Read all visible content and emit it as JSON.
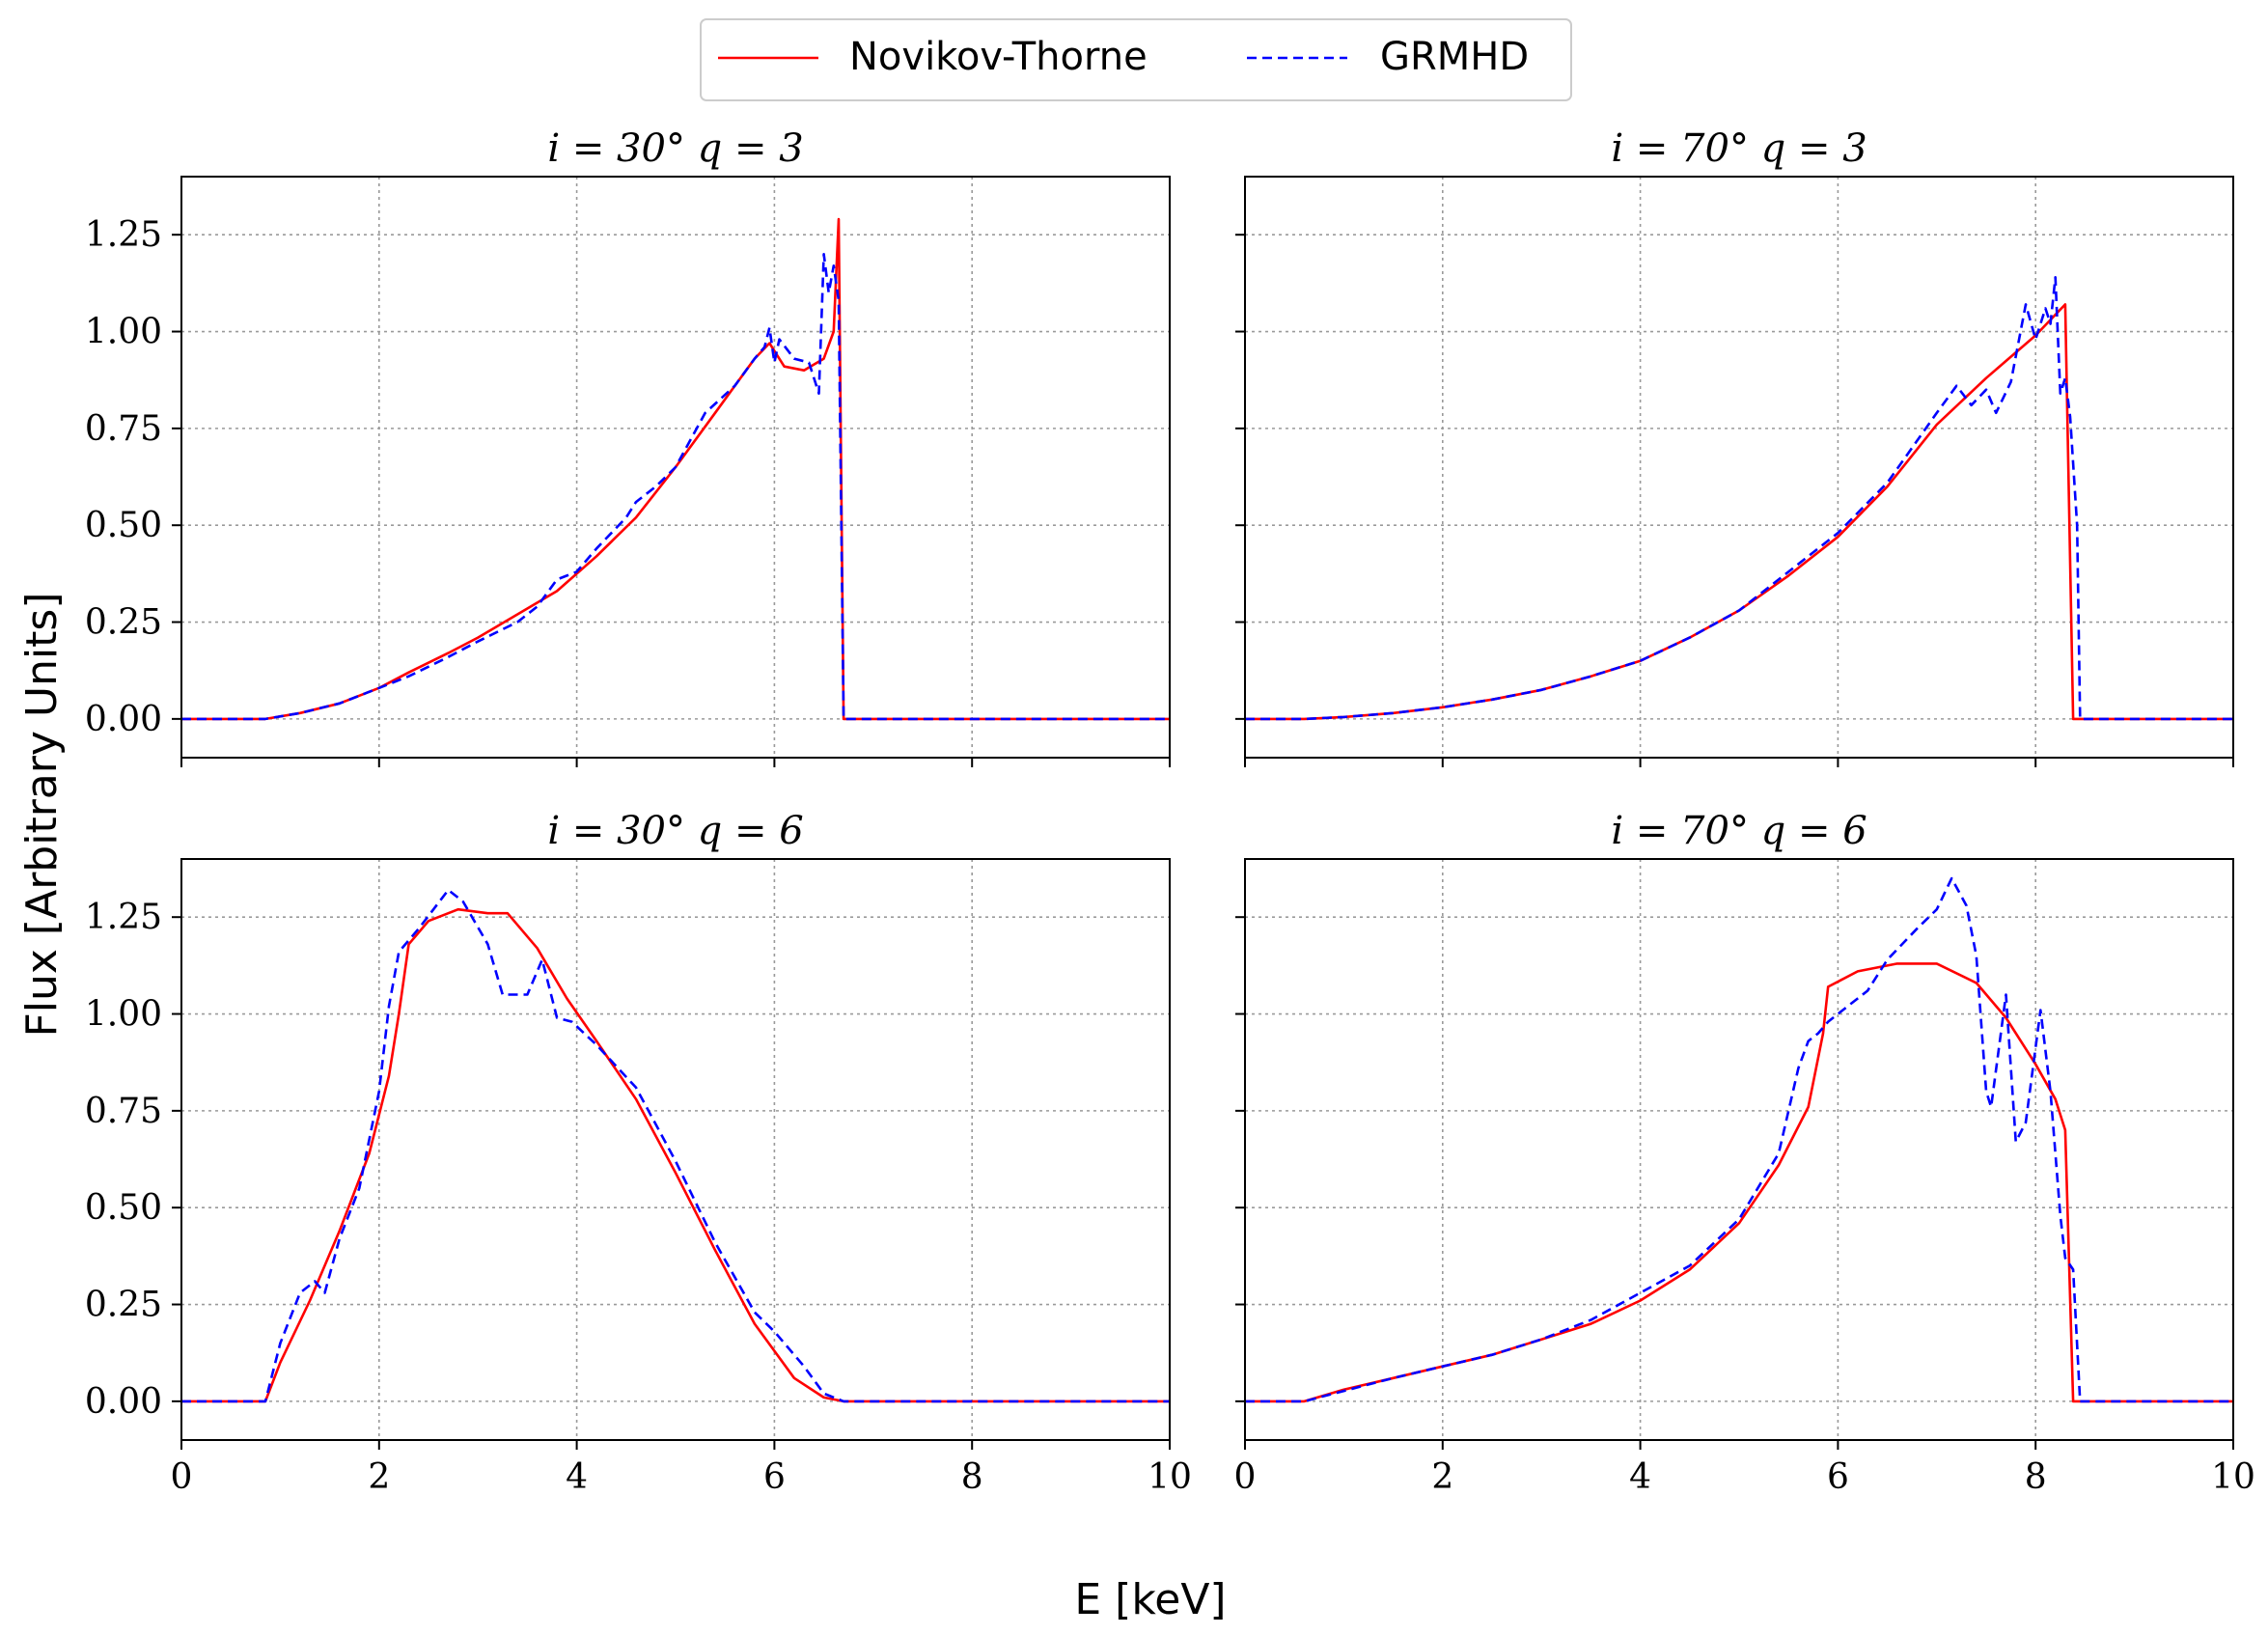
{
  "legend": [
    {
      "label": "Novikov-Thorne",
      "color": "#ff0000",
      "dash": "solid"
    },
    {
      "label": "GRMHD",
      "color": "#0000ff",
      "dash": "dashed"
    }
  ],
  "xlabel": "E [keV]",
  "ylabel": "Flux [Arbitrary Units]",
  "chart_data": [
    {
      "type": "line",
      "title": "i = 30° q = 3",
      "xlim": [
        0,
        10
      ],
      "ylim": [
        -0.1,
        1.4
      ],
      "xticks": [
        0,
        2,
        4,
        6,
        8,
        10
      ],
      "yticks": [
        "0.00",
        "0.25",
        "0.50",
        "0.75",
        "1.00",
        "1.25"
      ],
      "grid": true,
      "series": [
        {
          "name": "Novikov-Thorne",
          "x": [
            0,
            0.85,
            1.2,
            1.6,
            2.0,
            2.3,
            2.7,
            3.0,
            3.4,
            3.8,
            4.2,
            4.6,
            5.0,
            5.4,
            5.8,
            5.95,
            6.1,
            6.3,
            6.5,
            6.6,
            6.65,
            6.7,
            10
          ],
          "y": [
            0,
            0,
            0.015,
            0.04,
            0.08,
            0.12,
            0.17,
            0.21,
            0.27,
            0.33,
            0.42,
            0.52,
            0.65,
            0.79,
            0.93,
            0.97,
            0.91,
            0.9,
            0.93,
            1.0,
            1.29,
            0.0,
            0
          ]
        },
        {
          "name": "GRMHD",
          "x": [
            0,
            0.85,
            1.2,
            1.6,
            2.0,
            2.3,
            2.7,
            3.0,
            3.4,
            3.6,
            3.8,
            4.0,
            4.2,
            4.5,
            4.6,
            4.8,
            5.0,
            5.3,
            5.6,
            5.8,
            5.9,
            5.95,
            6.0,
            6.05,
            6.2,
            6.35,
            6.45,
            6.5,
            6.55,
            6.6,
            6.65,
            6.7,
            10
          ],
          "y": [
            0,
            0,
            0.015,
            0.04,
            0.08,
            0.11,
            0.16,
            0.2,
            0.25,
            0.29,
            0.36,
            0.38,
            0.44,
            0.52,
            0.56,
            0.6,
            0.65,
            0.79,
            0.86,
            0.93,
            0.96,
            1.01,
            0.92,
            0.98,
            0.93,
            0.92,
            0.84,
            1.2,
            1.1,
            1.17,
            1.08,
            0.0,
            0
          ]
        }
      ]
    },
    {
      "type": "line",
      "title": "i = 70° q = 3",
      "xlim": [
        0,
        10
      ],
      "ylim": [
        -0.1,
        1.4
      ],
      "xticks": [
        0,
        2,
        4,
        6,
        8,
        10
      ],
      "yticks": [
        "0.00",
        "0.25",
        "0.50",
        "0.75",
        "1.00",
        "1.25"
      ],
      "grid": true,
      "series": [
        {
          "name": "Novikov-Thorne",
          "x": [
            0,
            0.6,
            1.0,
            1.5,
            2.0,
            2.5,
            3.0,
            3.5,
            4.0,
            4.5,
            5.0,
            5.5,
            6.0,
            6.5,
            7.0,
            7.5,
            8.0,
            8.3,
            8.38,
            8.4,
            10
          ],
          "y": [
            0,
            0,
            0.005,
            0.015,
            0.03,
            0.05,
            0.075,
            0.11,
            0.15,
            0.21,
            0.28,
            0.37,
            0.47,
            0.6,
            0.76,
            0.88,
            0.99,
            1.07,
            0.0,
            0,
            0
          ]
        },
        {
          "name": "GRMHD",
          "x": [
            0,
            0.6,
            1.0,
            1.5,
            2.0,
            2.5,
            3.0,
            3.5,
            4.0,
            4.5,
            5.0,
            5.5,
            6.0,
            6.5,
            7.0,
            7.2,
            7.35,
            7.5,
            7.6,
            7.75,
            7.9,
            8.0,
            8.1,
            8.15,
            8.2,
            8.25,
            8.3,
            8.35,
            8.42,
            8.45,
            10
          ],
          "y": [
            0,
            0,
            0.005,
            0.015,
            0.03,
            0.05,
            0.075,
            0.11,
            0.15,
            0.21,
            0.28,
            0.38,
            0.48,
            0.61,
            0.79,
            0.86,
            0.81,
            0.85,
            0.79,
            0.87,
            1.07,
            0.98,
            1.06,
            1.02,
            1.14,
            0.84,
            0.88,
            0.78,
            0.5,
            0.0,
            0
          ]
        }
      ]
    },
    {
      "type": "line",
      "title": "i = 30° q = 6",
      "xlim": [
        0,
        10
      ],
      "ylim": [
        -0.1,
        1.4
      ],
      "xticks": [
        0,
        2,
        4,
        6,
        8,
        10
      ],
      "yticks": [
        "0.00",
        "0.25",
        "0.50",
        "0.75",
        "1.00",
        "1.25"
      ],
      "grid": true,
      "series": [
        {
          "name": "Novikov-Thorne",
          "x": [
            0,
            0.85,
            1.0,
            1.3,
            1.6,
            1.9,
            2.1,
            2.2,
            2.3,
            2.5,
            2.8,
            3.1,
            3.3,
            3.6,
            3.9,
            4.2,
            4.6,
            5.0,
            5.4,
            5.8,
            6.2,
            6.5,
            6.7,
            10
          ],
          "y": [
            0,
            0,
            0.1,
            0.26,
            0.44,
            0.64,
            0.84,
            1.0,
            1.18,
            1.24,
            1.27,
            1.26,
            1.26,
            1.17,
            1.04,
            0.93,
            0.78,
            0.59,
            0.39,
            0.2,
            0.06,
            0.01,
            0,
            0
          ]
        },
        {
          "name": "GRMHD",
          "x": [
            0,
            0.85,
            1.0,
            1.2,
            1.35,
            1.45,
            1.6,
            1.8,
            2.0,
            2.1,
            2.2,
            2.4,
            2.7,
            2.85,
            3.1,
            3.25,
            3.5,
            3.65,
            3.8,
            3.95,
            4.2,
            4.6,
            5.0,
            5.4,
            5.8,
            6.0,
            6.3,
            6.5,
            6.7,
            10
          ],
          "y": [
            0,
            0,
            0.15,
            0.28,
            0.31,
            0.28,
            0.42,
            0.55,
            0.8,
            1.02,
            1.16,
            1.22,
            1.32,
            1.29,
            1.18,
            1.05,
            1.05,
            1.14,
            0.99,
            0.98,
            0.92,
            0.81,
            0.62,
            0.41,
            0.23,
            0.18,
            0.09,
            0.02,
            0,
            0
          ]
        }
      ]
    },
    {
      "type": "line",
      "title": "i = 70° q = 6",
      "xlim": [
        0,
        10
      ],
      "ylim": [
        -0.1,
        1.4
      ],
      "xticks": [
        0,
        2,
        4,
        6,
        8,
        10
      ],
      "yticks": [
        "0.00",
        "0.25",
        "0.50",
        "0.75",
        "1.00",
        "1.25"
      ],
      "grid": true,
      "series": [
        {
          "name": "Novikov-Thorne",
          "x": [
            0,
            0.6,
            1.0,
            1.5,
            2.0,
            2.5,
            3.0,
            3.5,
            4.0,
            4.5,
            5.0,
            5.4,
            5.7,
            5.85,
            5.9,
            6.2,
            6.6,
            7.0,
            7.4,
            7.7,
            8.0,
            8.2,
            8.3,
            8.38,
            8.42,
            10
          ],
          "y": [
            0,
            0,
            0.03,
            0.06,
            0.09,
            0.12,
            0.16,
            0.2,
            0.26,
            0.34,
            0.46,
            0.61,
            0.76,
            0.95,
            1.07,
            1.11,
            1.13,
            1.13,
            1.08,
            0.99,
            0.87,
            0.78,
            0.7,
            0.0,
            0,
            0
          ]
        },
        {
          "name": "GRMHD",
          "x": [
            0,
            0.6,
            0.9,
            1.5,
            2.0,
            2.5,
            3.0,
            3.5,
            4.0,
            4.5,
            5.0,
            5.4,
            5.6,
            5.7,
            5.8,
            5.9,
            6.1,
            6.3,
            6.5,
            6.8,
            7.0,
            7.15,
            7.3,
            7.4,
            7.5,
            7.55,
            7.7,
            7.8,
            7.9,
            8.05,
            8.15,
            8.25,
            8.3,
            8.38,
            8.45,
            10
          ],
          "y": [
            0,
            0,
            0.02,
            0.06,
            0.09,
            0.12,
            0.16,
            0.21,
            0.28,
            0.35,
            0.47,
            0.64,
            0.86,
            0.93,
            0.95,
            0.98,
            1.02,
            1.06,
            1.14,
            1.22,
            1.27,
            1.35,
            1.28,
            1.15,
            0.8,
            0.76,
            1.05,
            0.67,
            0.72,
            1.01,
            0.8,
            0.48,
            0.37,
            0.34,
            0.0,
            0
          ]
        }
      ]
    }
  ]
}
